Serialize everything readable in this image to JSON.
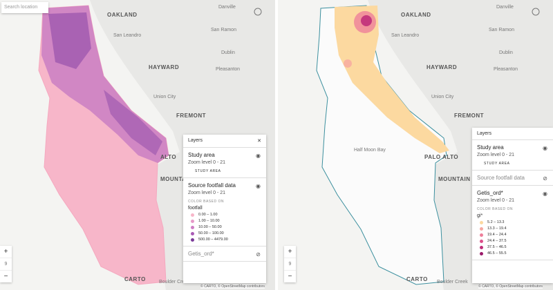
{
  "left_map": {
    "search_placeholder": "Search location",
    "labels": [
      "OAKLAND",
      "Danville",
      "San Ramon",
      "San Leandro",
      "Dublin",
      "HAYWARD",
      "Pleasanton",
      "Union City",
      "FREMONT",
      "ALTO",
      "MOUNTAIN",
      "Boulder Creek"
    ],
    "zoom": {
      "in": "+",
      "level": "9",
      "out": "−"
    },
    "logo": "CARTO",
    "attribution": "© CARTO, © OpenStreetMap contributors",
    "layers_panel": {
      "title": "Layers",
      "close": "✕",
      "layers": [
        {
          "name": "Study area",
          "zoom": "Zoom level 0 - 21",
          "legend_title": "STUDY AREA",
          "visible": true
        },
        {
          "name": "Source footfall data",
          "zoom": "Zoom level 0 - 21",
          "color_based_on": "COLOR BASED ON",
          "field": "footfall",
          "visible": true,
          "legend": [
            {
              "label": "0.00 – 1.00",
              "color": "#f7b6c9"
            },
            {
              "label": "1.00 – 10.00",
              "color": "#e79ac8"
            },
            {
              "label": "10.00 – 50.00",
              "color": "#cf7dc4"
            },
            {
              "label": "50.00 – 100.00",
              "color": "#a95bb5"
            },
            {
              "label": "500.00 – 4479.00",
              "color": "#7b3a99"
            }
          ]
        },
        {
          "name": "Getis_ord*",
          "visible": false
        }
      ]
    }
  },
  "right_map": {
    "labels": [
      "OAKLAND",
      "Danville",
      "San Ramon",
      "San Leandro",
      "Dublin",
      "HAYWARD",
      "Pleasanton",
      "Union City",
      "FREMONT",
      "Half Moon Bay",
      "PALO ALTO",
      "MOUNTAIN",
      "Boulder Creek"
    ],
    "zoom": {
      "in": "+",
      "level": "9",
      "out": "−"
    },
    "logo": "CARTO",
    "attribution": "© CARTO, © OpenStreetMap contributors",
    "layers_panel": {
      "title": "Layers",
      "layers": [
        {
          "name": "Study area",
          "zoom": "Zoom level 0 - 21",
          "legend_title": "STUDY AREA",
          "visible": true
        },
        {
          "name": "Source footfall data",
          "visible": false
        },
        {
          "name": "Getis_ord*",
          "zoom": "Zoom level 0 - 21",
          "color_based_on": "COLOR BASED ON",
          "field": "gi*",
          "visible": true,
          "legend": [
            {
              "label": "5.2 – 13.3",
              "color": "#fcd9a0"
            },
            {
              "label": "13.3 – 19.4",
              "color": "#f6a8a0"
            },
            {
              "label": "19.4 – 24.4",
              "color": "#ee7f9a"
            },
            {
              "label": "24.4 – 37.5",
              "color": "#dc4f8a"
            },
            {
              "label": "37.5 – 46.5",
              "color": "#c02f7a"
            },
            {
              "label": "46.5 – 55.5",
              "color": "#9b1a6a"
            }
          ]
        }
      ]
    }
  }
}
